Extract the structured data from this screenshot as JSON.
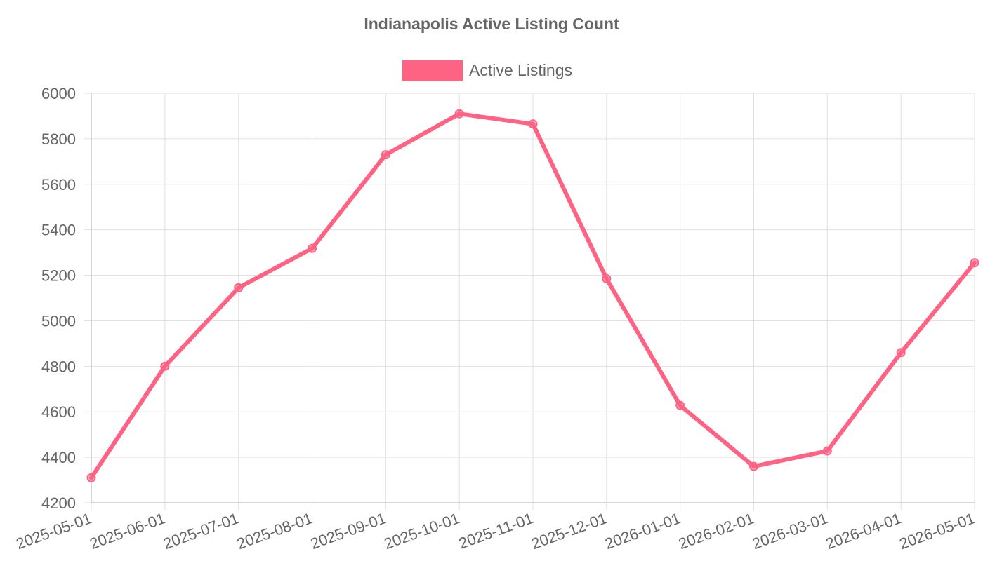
{
  "chart_data": {
    "type": "line",
    "title": "Indianapolis Active Listing Count",
    "x": [
      "2025-05-01",
      "2025-06-01",
      "2025-07-01",
      "2025-08-01",
      "2025-09-01",
      "2025-10-01",
      "2025-11-01",
      "2025-12-01",
      "2026-01-01",
      "2026-02-01",
      "2026-03-01",
      "2026-04-01",
      "2026-05-01"
    ],
    "series": [
      {
        "name": "Active Listings",
        "values": [
          4310,
          4800,
          5145,
          5318,
          5730,
          5910,
          5865,
          5185,
          4628,
          4360,
          4428,
          4860,
          5255
        ],
        "color": "#ff6384"
      }
    ],
    "xlabel": "",
    "ylabel": "",
    "ylim": [
      4200,
      6000
    ],
    "yticks": [
      4200,
      4400,
      4600,
      4800,
      5000,
      5200,
      5400,
      5600,
      5800,
      6000
    ],
    "grid": true,
    "legend_position": "top-center"
  }
}
